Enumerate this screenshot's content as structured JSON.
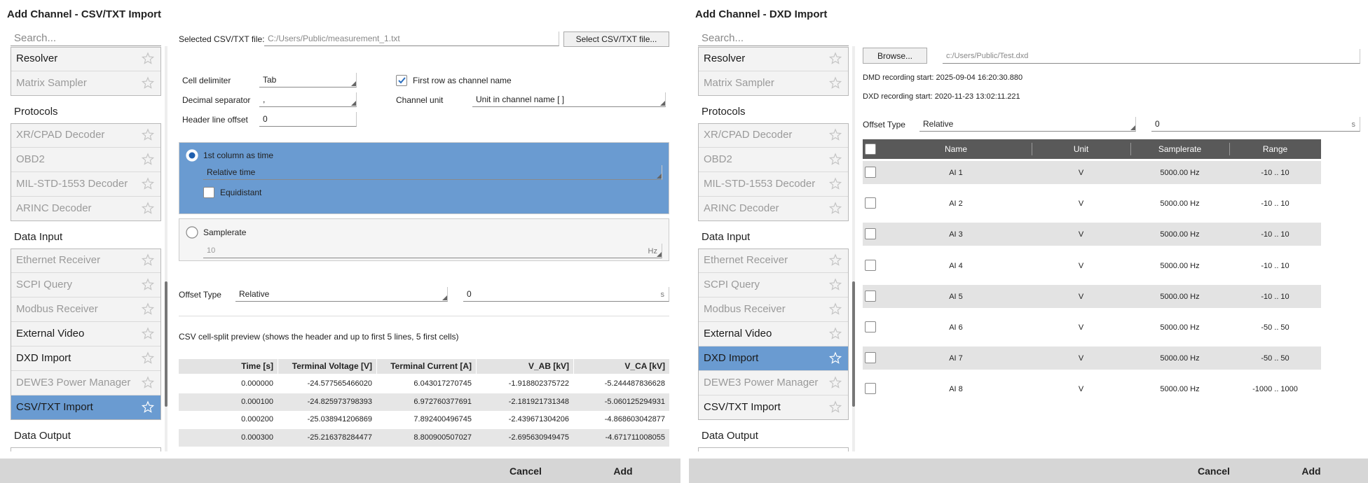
{
  "left": {
    "title": "Add Channel - CSV/TXT Import",
    "sidebar": {
      "search": "Search...",
      "groups": [
        {
          "items": [
            {
              "label": "Resolver",
              "enabled": true
            },
            {
              "label": "Matrix Sampler",
              "enabled": false
            }
          ]
        },
        {
          "heading": "Protocols",
          "items": [
            {
              "label": "XR/CPAD Decoder",
              "enabled": false
            },
            {
              "label": "OBD2",
              "enabled": false
            },
            {
              "label": "MIL-STD-1553 Decoder",
              "enabled": false
            },
            {
              "label": "ARINC Decoder",
              "enabled": false
            }
          ]
        },
        {
          "heading": "Data Input",
          "items": [
            {
              "label": "Ethernet Receiver",
              "enabled": false
            },
            {
              "label": "SCPI Query",
              "enabled": false
            },
            {
              "label": "Modbus Receiver",
              "enabled": false
            },
            {
              "label": "External Video",
              "enabled": true
            },
            {
              "label": "DXD Import",
              "enabled": true
            },
            {
              "label": "DEWE3 Power Manager",
              "enabled": false
            },
            {
              "label": "CSV/TXT Import",
              "enabled": true,
              "selected": true
            }
          ]
        },
        {
          "heading": "Data Output",
          "items": []
        }
      ]
    },
    "file_label": "Selected CSV/TXT file:",
    "file_path": "C:/Users/Public/measurement_1.txt",
    "file_button": "Select CSV/TXT file...",
    "cell_delimiter": {
      "label": "Cell delimiter",
      "value": "Tab"
    },
    "decimal_separator": {
      "label": "Decimal separator",
      "value": ","
    },
    "header_line_offset": {
      "label": "Header line offset",
      "value": "0"
    },
    "first_row": {
      "label": "First row as channel name",
      "checked": true
    },
    "channel_unit": {
      "label": "Channel unit",
      "value": "Unit in channel name [ ]"
    },
    "time_option": {
      "label": "1st column as time",
      "selected": true,
      "value": "Relative time",
      "equidistant": {
        "label": "Equidistant",
        "checked": false
      }
    },
    "samplerate_option": {
      "label": "Samplerate",
      "selected": false,
      "value": "10",
      "unit": "Hz"
    },
    "offset": {
      "label": "Offset Type",
      "type": "Relative",
      "value": "0",
      "unit": "s"
    },
    "preview_caption": "CSV cell-split preview (shows the header and up to first 5 lines, 5 first cells)",
    "preview_table": {
      "header": [
        "Time [s]",
        "Terminal Voltage [V]",
        "Terminal Current [A]",
        "V_AB [kV]",
        "V_CA [kV]"
      ],
      "rows": [
        [
          "0.000000",
          "-24.577565466020",
          "6.043017270745",
          "-1.918802375722",
          "-5.244487836628"
        ],
        [
          "0.000100",
          "-24.825973798393",
          "6.972760377691",
          "-2.181921731348",
          "-5.060125294931"
        ],
        [
          "0.000200",
          "-25.038941206869",
          "7.892400496745",
          "-2.439671304206",
          "-4.868603042877"
        ],
        [
          "0.000300",
          "-25.216378284477",
          "8.800900507027",
          "-2.695630949475",
          "-4.671711008055"
        ]
      ]
    },
    "footer": {
      "cancel": "Cancel",
      "add": "Add"
    }
  },
  "right": {
    "title": "Add Channel - DXD Import",
    "sidebar": {
      "search": "Search...",
      "groups": [
        {
          "items": [
            {
              "label": "Resolver",
              "enabled": true
            },
            {
              "label": "Matrix Sampler",
              "enabled": false
            }
          ]
        },
        {
          "heading": "Protocols",
          "items": [
            {
              "label": "XR/CPAD Decoder",
              "enabled": false
            },
            {
              "label": "OBD2",
              "enabled": false
            },
            {
              "label": "MIL-STD-1553 Decoder",
              "enabled": false
            },
            {
              "label": "ARINC Decoder",
              "enabled": false
            }
          ]
        },
        {
          "heading": "Data Input",
          "items": [
            {
              "label": "Ethernet Receiver",
              "enabled": false
            },
            {
              "label": "SCPI Query",
              "enabled": false
            },
            {
              "label": "Modbus Receiver",
              "enabled": false
            },
            {
              "label": "External Video",
              "enabled": true
            },
            {
              "label": "DXD Import",
              "enabled": true,
              "selected": true
            },
            {
              "label": "DEWE3 Power Manager",
              "enabled": false
            },
            {
              "label": "CSV/TXT Import",
              "enabled": true
            }
          ]
        },
        {
          "heading": "Data Output",
          "items": []
        }
      ]
    },
    "browse_button": "Browse...",
    "file_path": "c:/Users/Public/Test.dxd",
    "dmd_start": "DMD recording start: 2025-09-04 16:20:30.880",
    "dxd_start": "DXD recording start: 2020-11-23 13:02:11.221",
    "offset": {
      "label": "Offset Type",
      "type": "Relative",
      "value": "0",
      "unit": "s"
    },
    "table": {
      "header": [
        "Name",
        "Unit",
        "Samplerate",
        "Range"
      ],
      "rows": [
        [
          "AI 1",
          "V",
          "5000.00 Hz",
          "-10 .. 10"
        ],
        [
          "AI 2",
          "V",
          "5000.00 Hz",
          "-10 .. 10"
        ],
        [
          "AI 3",
          "V",
          "5000.00 Hz",
          "-10 .. 10"
        ],
        [
          "AI 4",
          "V",
          "5000.00 Hz",
          "-10 .. 10"
        ],
        [
          "AI 5",
          "V",
          "5000.00 Hz",
          "-10 .. 10"
        ],
        [
          "AI 6",
          "V",
          "5000.00 Hz",
          "-50 .. 50"
        ],
        [
          "AI 7",
          "V",
          "5000.00 Hz",
          "-50 .. 50"
        ],
        [
          "AI 8",
          "V",
          "5000.00 Hz",
          "-1000 .. 1000"
        ]
      ]
    },
    "footer": {
      "cancel": "Cancel",
      "add": "Add"
    }
  }
}
